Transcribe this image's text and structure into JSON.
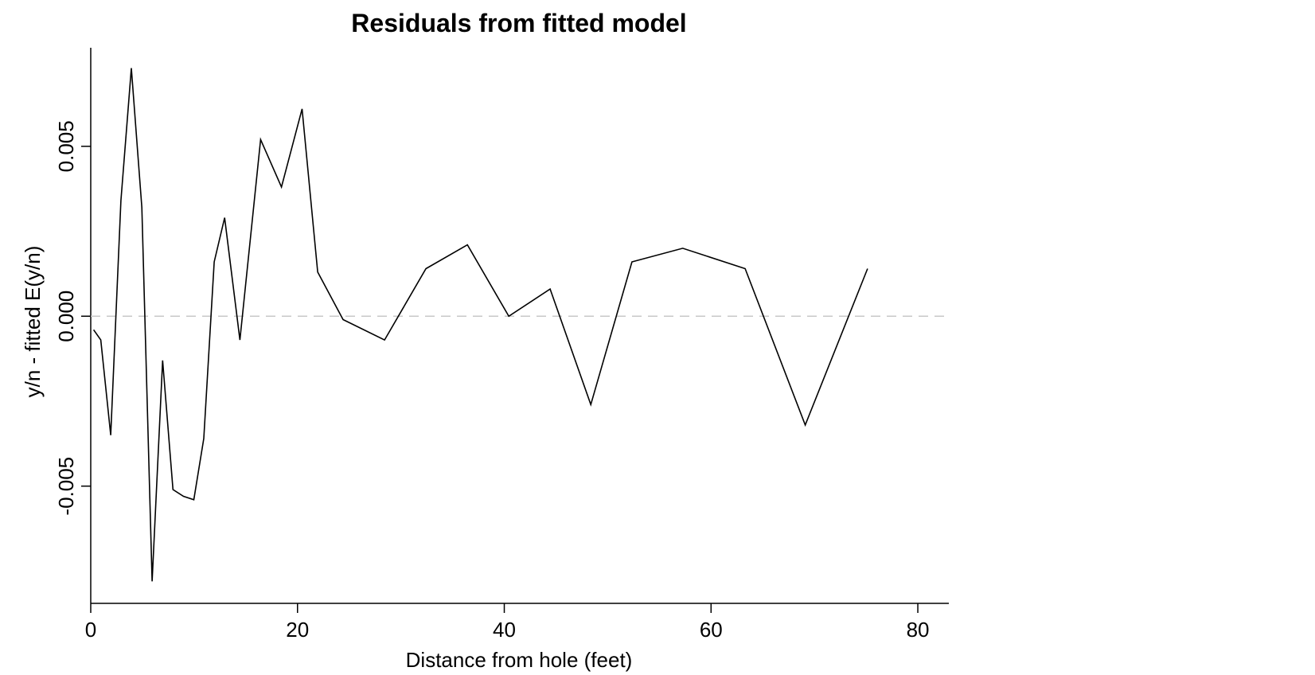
{
  "chart_data": {
    "type": "line",
    "title": "Residuals from fitted model",
    "xlabel": "Distance from hole (feet)",
    "ylabel": "y/n - fitted E(y/n)",
    "xlim": [
      0,
      83
    ],
    "ylim": [
      -0.00845,
      0.0079
    ],
    "xticks": [
      0,
      20,
      40,
      60,
      80
    ],
    "xtick_labels": [
      "0",
      "20",
      "40",
      "60",
      "80"
    ],
    "yticks": [
      -0.005,
      0.0,
      0.005
    ],
    "ytick_labels": [
      "-0.005",
      "0.000",
      "0.005"
    ],
    "reference_line": {
      "y": 0,
      "style": "dashed",
      "color": "#c8c8c8"
    },
    "line_color": "#000000",
    "grid": false,
    "series": [
      {
        "x": [
          0.28,
          0.97,
          1.93,
          2.92,
          3.93,
          4.94,
          5.94,
          6.95,
          7.95,
          8.97,
          9.97,
          10.93,
          11.94,
          12.95,
          14.43,
          16.43,
          18.45,
          20.44,
          21.95,
          24.41,
          28.42,
          32.42,
          36.43,
          40.44,
          44.43,
          48.37,
          52.35,
          57.26,
          63.3,
          69.11,
          75.14
        ],
        "y": [
          -0.0004,
          -0.0007,
          -0.0035,
          0.0034,
          0.0073,
          0.0032,
          -0.0078,
          -0.0013,
          -0.0051,
          -0.0053,
          -0.0054,
          -0.0036,
          0.0016,
          0.0029,
          -0.0007,
          0.0052,
          0.0038,
          0.0061,
          0.0013,
          -0.0001,
          -0.0007,
          0.0014,
          0.0021,
          0.0,
          0.0008,
          -0.0026,
          0.0016,
          0.002,
          0.0014,
          -0.0032,
          0.0014
        ]
      }
    ]
  }
}
